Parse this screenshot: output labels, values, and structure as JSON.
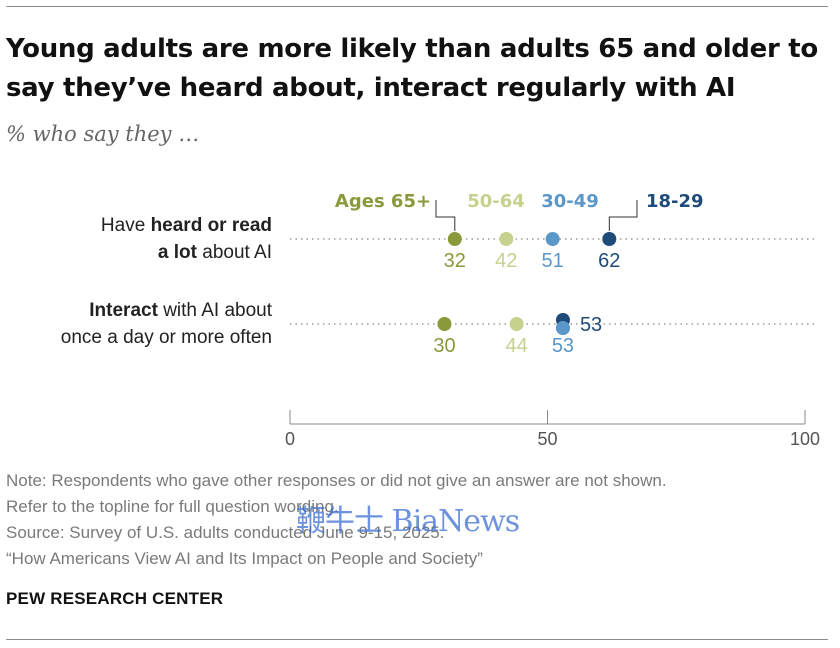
{
  "title": "Young adults are more likely than adults 65 and older to say they’ve heard about, interact regularly with AI",
  "subtitle": "% who say they …",
  "chart_data": {
    "type": "dot",
    "series": [
      {
        "name": "Ages 65+",
        "color": "#8a9a3b",
        "values": [
          32,
          30
        ]
      },
      {
        "name": "50-64",
        "color": "#c5d18d",
        "values": [
          42,
          44
        ]
      },
      {
        "name": "30-49",
        "color": "#5b97c9",
        "values": [
          51,
          53
        ]
      },
      {
        "name": "18-29",
        "color": "#1f4b7b",
        "values": [
          62,
          53
        ]
      }
    ],
    "rows": [
      {
        "segments": [
          {
            "text": "Have ",
            "bold": false
          },
          {
            "text": "heard or read",
            "bold": true
          },
          {
            "text": "a lot",
            "bold": true
          },
          {
            "text": " about AI",
            "bold": false
          }
        ]
      },
      {
        "segments": [
          {
            "text": "Interact",
            "bold": true
          },
          {
            "text": " with AI about",
            "bold": false
          },
          {
            "text": "once a day or more often",
            "bold": false
          }
        ]
      }
    ],
    "xlim": [
      0,
      100
    ],
    "xticks": [
      0,
      50,
      100
    ],
    "grid": false
  },
  "notes": [
    "Note: Respondents who gave other responses or did not give an answer are not shown.",
    "Refer to the topline for full question wording.",
    "Source: Survey of U.S. adults conducted June 9-15, 2025.",
    "“How Americans View AI and Its Impact on People and Society”"
  ],
  "logo": "PEW RESEARCH CENTER",
  "watermark": "鞭牛士 BiaNews"
}
